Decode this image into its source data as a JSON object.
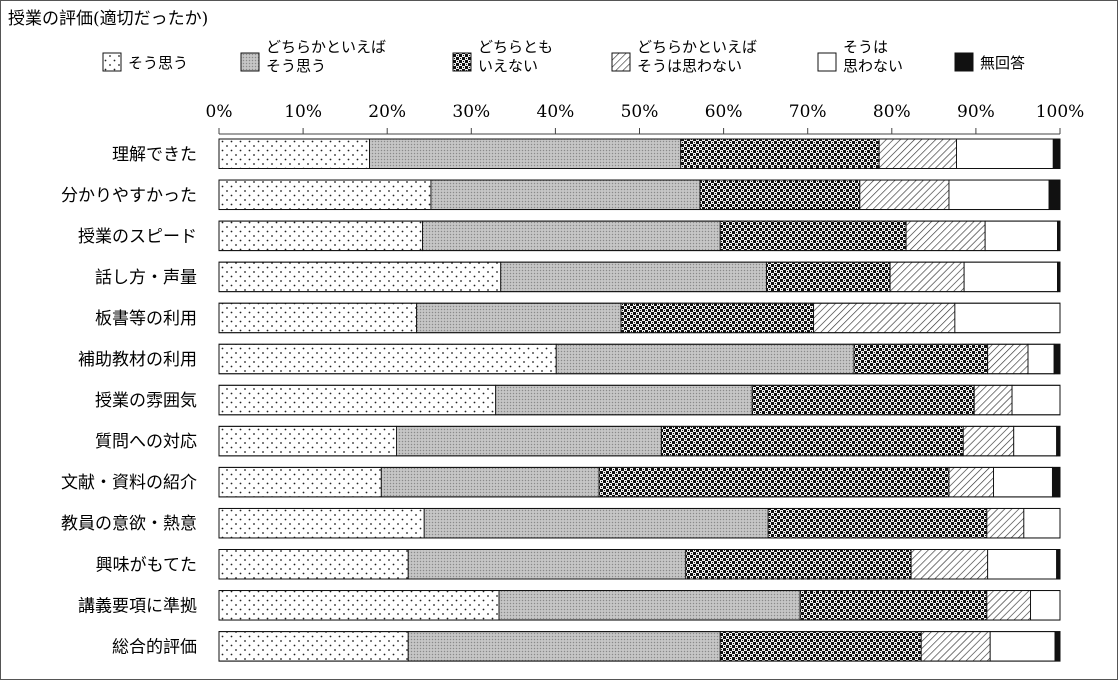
{
  "chart_data": {
    "type": "bar",
    "stacked": true,
    "orientation": "horizontal",
    "title": "授業の評価(適切だったか)",
    "xlim": [
      0,
      100
    ],
    "x_ticks": [
      "0%",
      "10%",
      "20%",
      "30%",
      "40%",
      "50%",
      "60%",
      "70%",
      "80%",
      "90%",
      "100%"
    ],
    "grid": false,
    "legend_position": "top",
    "categories": [
      "理解できた",
      "分かりやすかった",
      "授業のスピード",
      "話し方・声量",
      "板書等の利用",
      "補助教材の利用",
      "授業の雰囲気",
      "質問への対応",
      "文献・資料の紹介",
      "教員の意欲・熱意",
      "興味がもてた",
      "講義要項に準拠",
      "総合的評価"
    ],
    "series": [
      {
        "name": "そう思う",
        "lines": [
          "そう思う"
        ],
        "pattern": "dots",
        "values": [
          17.9,
          25.2,
          24.2,
          33.5,
          23.5,
          40.1,
          32.9,
          21.1,
          19.3,
          24.4,
          22.5,
          33.3,
          22.5
        ]
      },
      {
        "name": "どちらかといえばそう思う",
        "lines": [
          "どちらかといえば",
          "そう思う"
        ],
        "pattern": "gray",
        "values": [
          37.0,
          32.0,
          35.4,
          31.6,
          24.3,
          35.4,
          30.5,
          31.5,
          25.9,
          40.9,
          33.0,
          35.8,
          37.1
        ]
      },
      {
        "name": "どちらともいえない",
        "lines": [
          "どちらとも",
          "いえない"
        ],
        "pattern": "checker",
        "values": [
          23.6,
          19.0,
          22.1,
          14.7,
          22.9,
          15.9,
          26.4,
          35.9,
          41.6,
          26.0,
          26.8,
          22.2,
          23.9
        ]
      },
      {
        "name": "どちらかといえばそうは思わない",
        "lines": [
          "どちらかといえば",
          "そうは思わない"
        ],
        "pattern": "hatch",
        "values": [
          9.2,
          10.6,
          9.4,
          8.8,
          16.8,
          4.8,
          4.5,
          6.0,
          5.3,
          4.4,
          9.1,
          5.2,
          8.2
        ],
        "labels": []
      },
      {
        "name": "そうは思わない",
        "lines": [
          "そうは",
          "思わない"
        ],
        "pattern": "white",
        "values": [
          11.5,
          11.9,
          8.6,
          11.1,
          12.5,
          3.1,
          5.7,
          5.1,
          7.0,
          4.3,
          8.2,
          3.5,
          7.7
        ]
      },
      {
        "name": "無回答",
        "lines": [
          "無回答"
        ],
        "pattern": "black",
        "values": [
          0.8,
          1.3,
          0.3,
          0.3,
          0.0,
          0.7,
          0.0,
          0.4,
          0.9,
          0.0,
          0.4,
          0.0,
          0.6
        ]
      }
    ]
  }
}
